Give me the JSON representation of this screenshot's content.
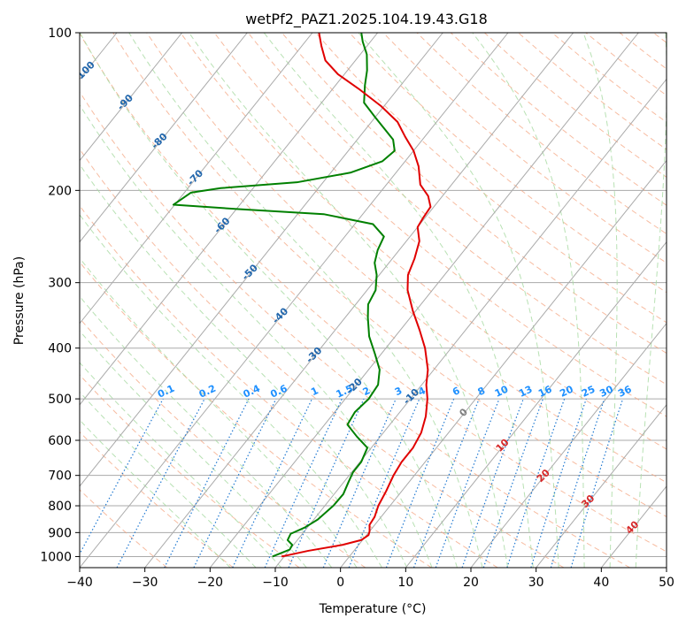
{
  "chart_data": {
    "type": "line",
    "subtype": "skew-t log-p diagram",
    "title": "wetPf2_PAZ1.2025.104.19.43.G18",
    "xlabel": "Temperature (°C)",
    "ylabel": "Pressure (hPa)",
    "xlim": [
      -40,
      50
    ],
    "ylim": [
      1050,
      100
    ],
    "y_scale": "log",
    "x_ticks": [
      "−40",
      "−30",
      "−20",
      "−10",
      "0",
      "10",
      "20",
      "30",
      "40",
      "50"
    ],
    "x_tick_values": [
      -40,
      -30,
      -20,
      -10,
      0,
      10,
      20,
      30,
      40,
      50
    ],
    "y_ticks": [
      "100",
      "200",
      "300",
      "400",
      "500",
      "600",
      "700",
      "800",
      "900",
      "1000"
    ],
    "y_tick_values": [
      100,
      200,
      300,
      400,
      500,
      600,
      700,
      800,
      900,
      1000
    ],
    "grid": true,
    "series": [
      {
        "role": "temperature",
        "color": "#e00000",
        "points": [
          {
            "p": 1000,
            "t": -10.4
          },
          {
            "p": 975,
            "t": -7.0
          },
          {
            "p": 950,
            "t": -2.5
          },
          {
            "p": 930,
            "t": -0.2
          },
          {
            "p": 910,
            "t": 0.3
          },
          {
            "p": 895,
            "t": 0.0
          },
          {
            "p": 870,
            "t": -0.8
          },
          {
            "p": 840,
            "t": -1.0
          },
          {
            "p": 800,
            "t": -1.8
          },
          {
            "p": 750,
            "t": -2.4
          },
          {
            "p": 700,
            "t": -3.2
          },
          {
            "p": 660,
            "t": -3.6
          },
          {
            "p": 620,
            "t": -3.6
          },
          {
            "p": 580,
            "t": -4.2
          },
          {
            "p": 540,
            "t": -5.5
          },
          {
            "p": 500,
            "t": -7.4
          },
          {
            "p": 470,
            "t": -9.3
          },
          {
            "p": 440,
            "t": -10.9
          },
          {
            "p": 400,
            "t": -14.0
          },
          {
            "p": 370,
            "t": -17.0
          },
          {
            "p": 340,
            "t": -20.4
          },
          {
            "p": 310,
            "t": -23.8
          },
          {
            "p": 290,
            "t": -25.6
          },
          {
            "p": 270,
            "t": -26.6
          },
          {
            "p": 250,
            "t": -28.0
          },
          {
            "p": 235,
            "t": -30.0
          },
          {
            "p": 225,
            "t": -30.3
          },
          {
            "p": 215,
            "t": -30.5
          },
          {
            "p": 205,
            "t": -32.2
          },
          {
            "p": 195,
            "t": -34.8
          },
          {
            "p": 180,
            "t": -37.3
          },
          {
            "p": 168,
            "t": -40.0
          },
          {
            "p": 158,
            "t": -43.0
          },
          {
            "p": 148,
            "t": -46.0
          },
          {
            "p": 138,
            "t": -50.5
          },
          {
            "p": 128,
            "t": -56.0
          },
          {
            "p": 120,
            "t": -61.0
          },
          {
            "p": 113,
            "t": -64.6
          },
          {
            "p": 106,
            "t": -67.0
          },
          {
            "p": 100,
            "t": -69.0
          }
        ]
      },
      {
        "role": "dewpoint",
        "color": "#008000",
        "points": [
          {
            "p": 1000,
            "t": -11.8
          },
          {
            "p": 970,
            "t": -10.0
          },
          {
            "p": 950,
            "t": -10.2
          },
          {
            "p": 930,
            "t": -11.5
          },
          {
            "p": 905,
            "t": -11.8
          },
          {
            "p": 880,
            "t": -10.4
          },
          {
            "p": 850,
            "t": -9.4
          },
          {
            "p": 800,
            "t": -8.7
          },
          {
            "p": 760,
            "t": -8.6
          },
          {
            "p": 720,
            "t": -9.3
          },
          {
            "p": 690,
            "t": -9.8
          },
          {
            "p": 660,
            "t": -9.8
          },
          {
            "p": 620,
            "t": -10.6
          },
          {
            "p": 590,
            "t": -13.6
          },
          {
            "p": 560,
            "t": -16.5
          },
          {
            "p": 530,
            "t": -16.9
          },
          {
            "p": 500,
            "t": -16.4
          },
          {
            "p": 470,
            "t": -16.7
          },
          {
            "p": 440,
            "t": -18.3
          },
          {
            "p": 410,
            "t": -21.0
          },
          {
            "p": 380,
            "t": -24.0
          },
          {
            "p": 350,
            "t": -26.5
          },
          {
            "p": 330,
            "t": -28.1
          },
          {
            "p": 310,
            "t": -28.7
          },
          {
            "p": 290,
            "t": -30.4
          },
          {
            "p": 275,
            "t": -32.2
          },
          {
            "p": 260,
            "t": -33.3
          },
          {
            "p": 245,
            "t": -34.0
          },
          {
            "p": 232,
            "t": -37.2
          },
          {
            "p": 222,
            "t": -46.0
          },
          {
            "p": 217,
            "t": -60.0
          },
          {
            "p": 213,
            "t": -70.2
          },
          {
            "p": 202,
            "t": -69.0
          },
          {
            "p": 198,
            "t": -65.0
          },
          {
            "p": 193,
            "t": -54.0
          },
          {
            "p": 185,
            "t": -47.0
          },
          {
            "p": 176,
            "t": -43.5
          },
          {
            "p": 168,
            "t": -42.9
          },
          {
            "p": 160,
            "t": -44.5
          },
          {
            "p": 153,
            "t": -47.0
          },
          {
            "p": 145,
            "t": -50.0
          },
          {
            "p": 136,
            "t": -53.5
          },
          {
            "p": 126,
            "t": -55.5
          },
          {
            "p": 118,
            "t": -57.0
          },
          {
            "p": 110,
            "t": -59.0
          },
          {
            "p": 104,
            "t": -61.2
          },
          {
            "p": 100,
            "t": -62.5
          }
        ]
      }
    ],
    "isotherm_labels": [
      {
        "text": "-100",
        "t": -100
      },
      {
        "text": "-90",
        "t": -90
      },
      {
        "text": "-80",
        "t": -80
      },
      {
        "text": "-70",
        "t": -70
      },
      {
        "text": "-60",
        "t": -60
      },
      {
        "text": "-50",
        "t": -50
      },
      {
        "text": "-40",
        "t": -40
      },
      {
        "text": "-30",
        "t": -30
      },
      {
        "text": "-20",
        "t": -20
      },
      {
        "text": "-10",
        "t": -10
      },
      {
        "text": "0",
        "t": 0
      },
      {
        "text": "10",
        "t": 10
      },
      {
        "text": "20",
        "t": 20
      },
      {
        "text": "30",
        "t": 30
      },
      {
        "text": "40",
        "t": 40
      }
    ],
    "mixing_ratio_labels": [
      "0.1",
      "0.2",
      "0.4",
      "0.6",
      "1",
      "1.5",
      "2",
      "3",
      "4",
      "6",
      "8",
      "10",
      "13",
      "16",
      "20",
      "25",
      "30",
      "36"
    ],
    "mixing_ratio_values": [
      0.1,
      0.2,
      0.4,
      0.6,
      1,
      1.5,
      2,
      3,
      4,
      6,
      8,
      10,
      13,
      16,
      20,
      25,
      30,
      36
    ],
    "colors": {
      "isotherm": "#aaaaaa",
      "dry_adiabat": "#f4a582",
      "moist_adiabat": "#a6d9a0",
      "mixing_ratio": "#1f78d1",
      "isotherm_label_cold": "#2166ac",
      "isotherm_label_zero": "#7f7f7f",
      "isotherm_label_warm": "#d62728",
      "mixing_ratio_label": "#1e90ff"
    }
  }
}
